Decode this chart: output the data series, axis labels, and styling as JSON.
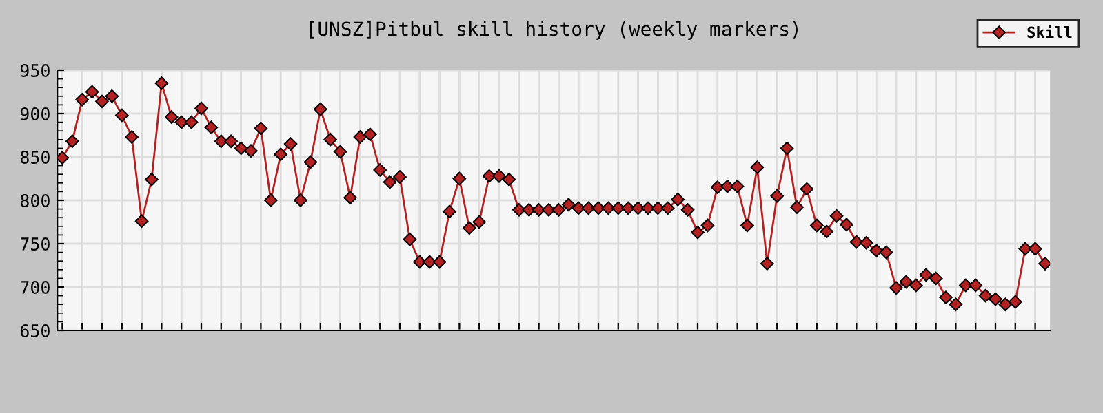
{
  "chart_data": {
    "type": "line",
    "title": "[UNSZ]Pitbul skill history (weekly markers)",
    "categories": [
      null,
      null,
      null,
      null,
      null,
      null,
      null,
      null,
      null,
      null,
      null,
      null,
      null,
      null,
      null,
      null,
      null,
      null,
      null,
      null,
      null,
      null,
      null,
      null,
      null,
      null,
      null,
      null,
      null,
      null,
      null,
      null,
      null,
      null,
      null,
      null,
      null,
      null,
      null,
      null,
      null,
      null,
      null,
      null,
      null,
      null,
      null,
      null,
      null,
      null,
      null,
      null,
      null,
      null,
      null,
      null,
      null,
      null,
      null,
      null,
      null,
      null,
      null,
      null,
      null,
      null,
      null,
      null,
      null,
      null,
      null,
      null,
      null,
      null,
      null,
      null,
      null,
      null,
      null,
      null,
      null,
      null,
      null,
      null,
      null,
      null,
      null,
      null,
      null,
      null,
      null,
      null,
      null,
      null,
      null,
      null,
      null,
      null,
      null,
      null
    ],
    "series": [
      {
        "name": "Skill",
        "color": "#b22222",
        "values": [
          849,
          868,
          916,
          925,
          914,
          920,
          898,
          873,
          776,
          824,
          935,
          896,
          890,
          890,
          906,
          884,
          868,
          868,
          860,
          857,
          883,
          800,
          853,
          865,
          800,
          844,
          905,
          870,
          856,
          803,
          873,
          876,
          835,
          821,
          827,
          755,
          729,
          729,
          729,
          787,
          825,
          768,
          775,
          828,
          828,
          824,
          789,
          789,
          789,
          789,
          789,
          795,
          791,
          791,
          791,
          791,
          791,
          791,
          791,
          791,
          791,
          791,
          801,
          789,
          763,
          771,
          815,
          816,
          816,
          771,
          838,
          727,
          805,
          860,
          792,
          813,
          771,
          764,
          782,
          772,
          752,
          751,
          742,
          740,
          699,
          706,
          702,
          714,
          710,
          688,
          680,
          702,
          702,
          690,
          686,
          680,
          683,
          744,
          744,
          727
        ]
      }
    ],
    "ylim": [
      650,
      950
    ],
    "yticks": [
      650,
      700,
      750,
      800,
      850,
      900,
      950
    ],
    "grid": true,
    "legend": "top right",
    "marker": "diamond",
    "line_style": "solid",
    "tick_labels": "y"
  }
}
